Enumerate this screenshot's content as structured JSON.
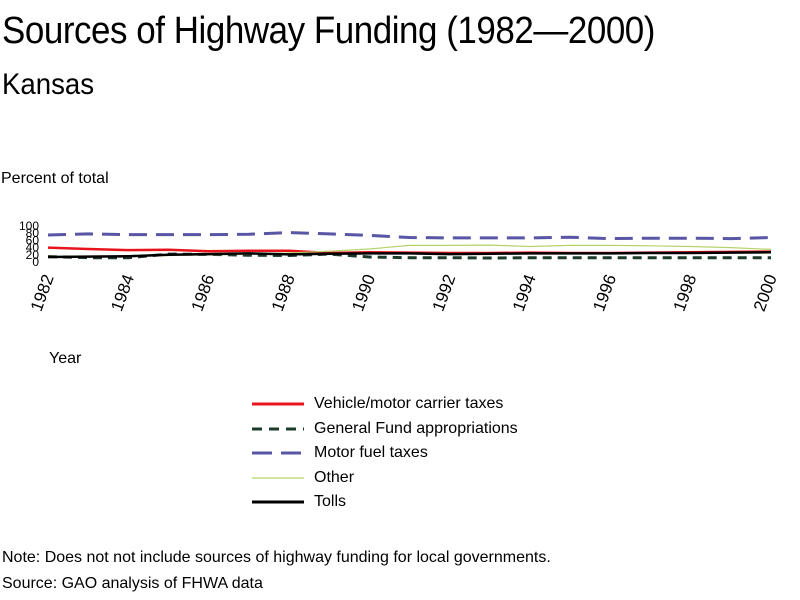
{
  "header": {
    "title": "Sources of Highway Funding (1982—2000)",
    "subtitle": "Kansas"
  },
  "footer": {
    "note": "Note: Does not not include sources of highway funding for local governments.",
    "source": "Source: GAO analysis of FHWA data"
  },
  "chart_data": {
    "type": "line",
    "title": "Sources of Highway Funding (1982—2000)",
    "subtitle": "Kansas",
    "xlabel": "Year",
    "ylabel": "Percent of total",
    "x": [
      1982,
      1983,
      1984,
      1985,
      1986,
      1987,
      1988,
      1989,
      1990,
      1991,
      1992,
      1993,
      1994,
      1995,
      1996,
      1997,
      1998,
      1999,
      2000
    ],
    "x_ticks": [
      "1982",
      "1984",
      "1986",
      "1988",
      "1990",
      "1992",
      "1994",
      "1996",
      "1998",
      "2000"
    ],
    "y_ticks": [
      "0",
      "20",
      "40",
      "60",
      "80",
      "100"
    ],
    "ylim": [
      0,
      100
    ],
    "grid": false,
    "legend_position": "bottom",
    "series": [
      {
        "name": "Vehicle/motor carrier taxes",
        "color": "#e8141c",
        "dash": "solid",
        "values": [
          40,
          36,
          33,
          34,
          30,
          31,
          31,
          25,
          27,
          26,
          25,
          25,
          26,
          25,
          25,
          26,
          27,
          28,
          29
        ]
      },
      {
        "name": "General Fund appropriations",
        "color": "#1c3b2a",
        "dash": "dense",
        "values": [
          15,
          12,
          12,
          22,
          21,
          19,
          18,
          22,
          14,
          12,
          12,
          11,
          12,
          12,
          12,
          12,
          12,
          12,
          12
        ]
      },
      {
        "name": "Motor fuel taxes",
        "color": "#5a56a6",
        "dash": "long",
        "values": [
          75,
          78,
          76,
          76,
          76,
          77,
          82,
          78,
          74,
          68,
          67,
          67,
          67,
          69,
          65,
          66,
          66,
          65,
          68
        ]
      },
      {
        "name": "Other",
        "color": "#b4d36a",
        "dash": "solid",
        "values": [
          15,
          15,
          16,
          18,
          20,
          22,
          25,
          30,
          36,
          46,
          46,
          47,
          43,
          46,
          46,
          45,
          43,
          40,
          35
        ]
      },
      {
        "name": "Tolls",
        "color": "#000000",
        "dash": "solid",
        "values": [
          14,
          15,
          16,
          20,
          22,
          24,
          21,
          23,
          24,
          24,
          22,
          23,
          24,
          24,
          24,
          25,
          25,
          26,
          27
        ]
      }
    ]
  }
}
